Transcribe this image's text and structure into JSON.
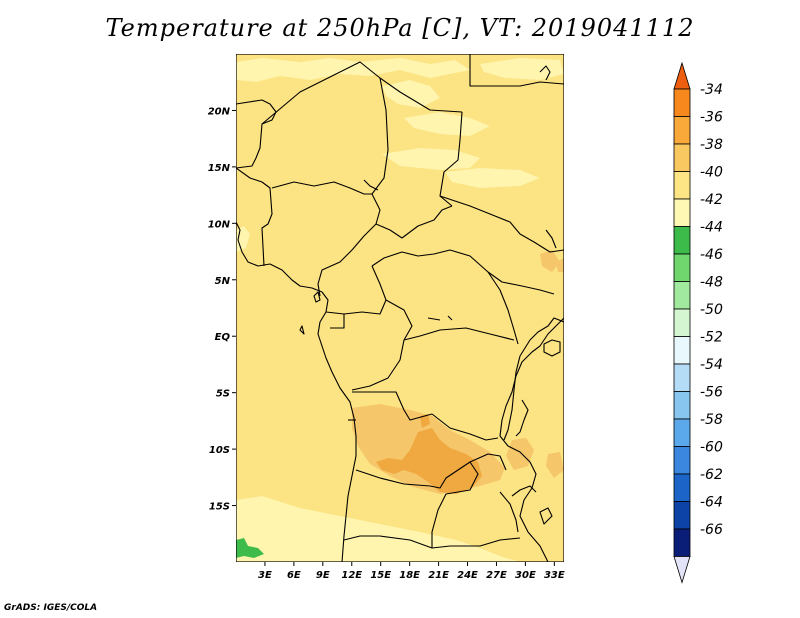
{
  "title": "Temperature at 250hPa [C], VT: 2019041112",
  "credit": "GrADS: IGES/COLA",
  "map": {
    "lon_range": [
      0,
      34
    ],
    "lat_range": [
      -20,
      25
    ],
    "x_ticks": [
      "3E",
      "6E",
      "9E",
      "12E",
      "15E",
      "18E",
      "21E",
      "24E",
      "27E",
      "30E",
      "33E"
    ],
    "y_ticks": [
      "20N",
      "15N",
      "10N",
      "5N",
      "EQ",
      "5S",
      "10S",
      "15S"
    ],
    "fill_colors": {
      "base": "#fce383",
      "band_40_42": "#fff5ae",
      "band_38_40": "#f6c66a",
      "band_36_38": "#f0a840",
      "green": "#3fbb4b"
    }
  },
  "colorbar": {
    "labels": [
      "-34",
      "-36",
      "-38",
      "-40",
      "-42",
      "-44",
      "-46",
      "-48",
      "-50",
      "-52",
      "-54",
      "-56",
      "-58",
      "-60",
      "-62",
      "-64",
      "-66"
    ],
    "colors": [
      "#ee5e10",
      "#f7881e",
      "#f8a93a",
      "#f9c860",
      "#fde484",
      "#fff7b4",
      "#3cbb4a",
      "#6fd76e",
      "#a2e9a0",
      "#d4f6d0",
      "#e9f8fd",
      "#b4dcf7",
      "#88c5ef",
      "#5ba9ea",
      "#3b86df",
      "#1c64c8",
      "#0d43a6",
      "#0a1e78",
      "#e4e4f8"
    ]
  }
}
